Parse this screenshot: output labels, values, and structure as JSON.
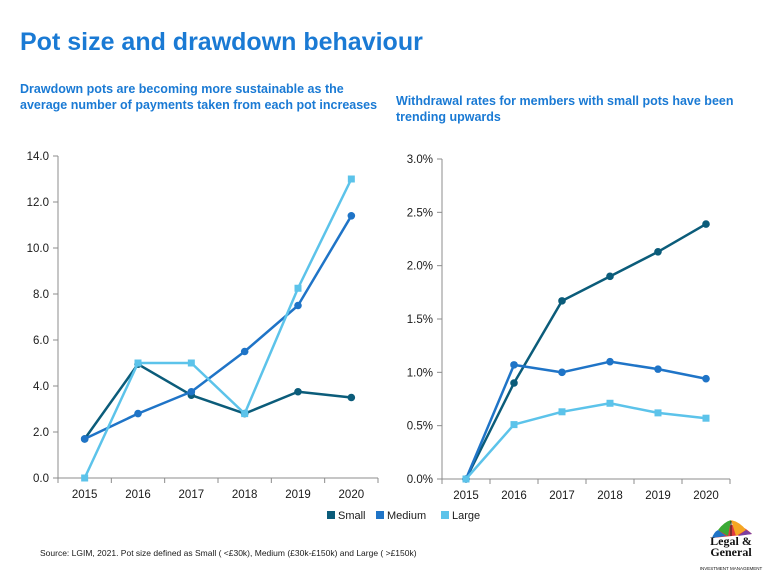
{
  "title": "Pot size and drawdown behaviour",
  "source_note": "Source: LGIM,  2021. Pot size defined as Small  ( <£30k), Medium (£30k-£150k) and Large ( >£150k)",
  "logo": {
    "line1": "Legal &",
    "line2": "General",
    "line3": "INVESTMENT MANAGEMENT"
  },
  "colors": {
    "title": "#1a7ad4",
    "small": "#0b5c7a",
    "medium": "#1f74c7",
    "large": "#5cc3ea"
  },
  "legend": [
    "Small",
    "Medium",
    "Large"
  ],
  "chart_data": [
    {
      "type": "line",
      "subtitle": "Drawdown pots are becoming more sustainable as the average number of payments taken from each pot increases",
      "x": [
        "2015",
        "2016",
        "2017",
        "2018",
        "2019",
        "2020"
      ],
      "ylim": [
        0,
        14
      ],
      "yticks": [
        "0.0",
        "2.0",
        "4.0",
        "6.0",
        "8.0",
        "10.0",
        "12.0",
        "14.0"
      ],
      "grid": false,
      "legend_position": "bottom",
      "series": [
        {
          "name": "Small",
          "values": [
            1.7,
            4.95,
            3.6,
            2.8,
            3.75,
            3.5
          ]
        },
        {
          "name": "Medium",
          "values": [
            1.7,
            2.8,
            3.75,
            5.5,
            7.5,
            11.4
          ]
        },
        {
          "name": "Large",
          "values": [
            0.0,
            5.0,
            5.0,
            2.8,
            8.25,
            13.0
          ]
        }
      ]
    },
    {
      "type": "line",
      "subtitle": "Withdrawal rates for members with small pots have been trending upwards",
      "x": [
        "2015",
        "2016",
        "2017",
        "2018",
        "2019",
        "2020"
      ],
      "ylim": [
        0,
        3.0
      ],
      "yticks": [
        "0.0%",
        "0.5%",
        "1.0%",
        "1.5%",
        "2.0%",
        "2.5%",
        "3.0%"
      ],
      "grid": false,
      "series": [
        {
          "name": "Small",
          "values": [
            0.0,
            0.9,
            1.67,
            1.9,
            2.13,
            2.39
          ]
        },
        {
          "name": "Medium",
          "values": [
            0.0,
            1.07,
            1.0,
            1.1,
            1.03,
            0.94
          ]
        },
        {
          "name": "Large",
          "values": [
            0.0,
            0.51,
            0.63,
            0.71,
            0.62,
            0.57
          ]
        }
      ]
    }
  ]
}
